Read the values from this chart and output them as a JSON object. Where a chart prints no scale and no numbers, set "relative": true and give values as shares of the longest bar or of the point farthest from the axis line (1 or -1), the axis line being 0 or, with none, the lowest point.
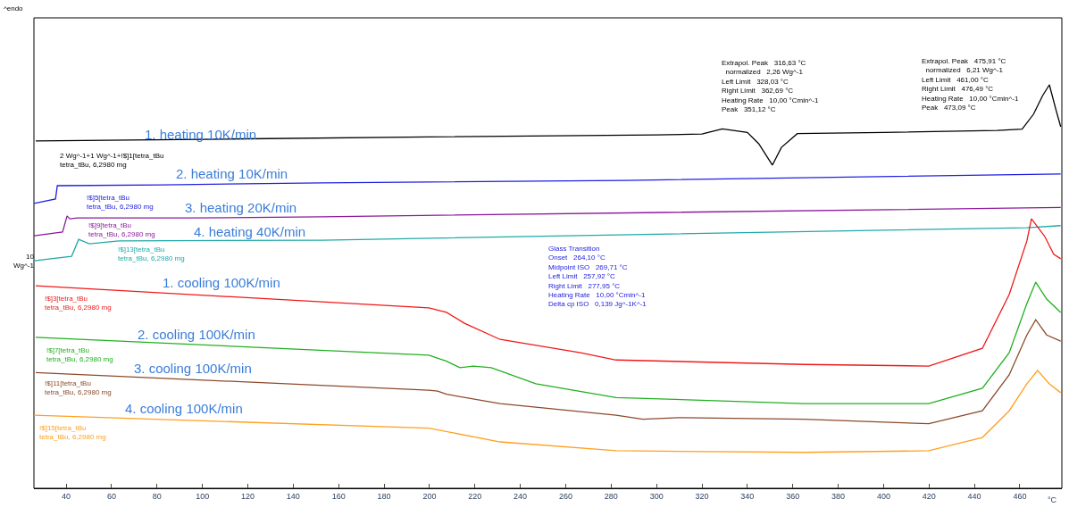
{
  "chart_data": {
    "type": "line",
    "relative": true,
    "xlabel": "°C",
    "xlim": [
      25.8,
      478.5
    ],
    "xticks": [
      40,
      60,
      80,
      100,
      120,
      140,
      160,
      180,
      200,
      220,
      240,
      260,
      280,
      300,
      320,
      340,
      360,
      380,
      400,
      420,
      440,
      460
    ],
    "grid": false,
    "legend": false,
    "marker": "none",
    "line_style": "solid",
    "series": [
      {
        "name": "1. heating 10K/min",
        "color": "#000000",
        "x": [
          26.6,
          100,
          200,
          300,
          320,
          329,
          340,
          345,
          351,
          355,
          362,
          400,
          450,
          461,
          466,
          470,
          473,
          476,
          478
        ],
        "values": [
          0.861,
          0.865,
          0.871,
          0.876,
          0.878,
          0.891,
          0.882,
          0.854,
          0.801,
          0.845,
          0.879,
          0.882,
          0.887,
          0.89,
          0.927,
          0.973,
          1.0,
          0.936,
          0.896
        ]
      },
      {
        "name": "2. heating 10K/min",
        "color": "#2020e0",
        "x": [
          25.8,
          35.3,
          36.1,
          82.5,
          152.5,
          286,
          478
        ],
        "values": [
          0.706,
          0.717,
          0.75,
          0.752,
          0.757,
          0.763,
          0.779
        ]
      },
      {
        "name": "3. heating 20K/min",
        "color": "#8b1a9b",
        "x": [
          25.8,
          38.4,
          40.4,
          41.6,
          45.1,
          94.7,
          152.5,
          478
        ],
        "values": [
          0.626,
          0.635,
          0.675,
          0.668,
          0.67,
          0.67,
          0.673,
          0.696
        ]
      },
      {
        "name": "4. heating 40K/min",
        "color": "#20a8a8",
        "x": [
          25.8,
          42.4,
          45.5,
          50.2,
          63.2,
          152.5,
          463,
          478
        ],
        "values": [
          0.564,
          0.575,
          0.617,
          0.606,
          0.613,
          0.615,
          0.646,
          0.651
        ]
      },
      {
        "name": "1. cooling 100K/min",
        "color": "#f01818",
        "x": [
          26.6,
          199.7,
          207.5,
          215.4,
          231.1,
          266.5,
          282.2,
          364.8,
          419.9,
          443.5,
          455.3,
          463.1,
          465.1,
          471.0,
          474.9,
          478
        ],
        "values": [
          0.502,
          0.447,
          0.436,
          0.409,
          0.369,
          0.336,
          0.318,
          0.307,
          0.303,
          0.347,
          0.48,
          0.613,
          0.668,
          0.624,
          0.58,
          0.569
        ]
      },
      {
        "name": "2. cooling 100K/min",
        "color": "#20b020",
        "x": [
          26.6,
          199.7,
          207.5,
          213.4,
          219.3,
          227.2,
          246.8,
          282.2,
          364.8,
          419.9,
          443.5,
          455.3,
          463.1,
          467.0,
          471.8,
          478
        ],
        "values": [
          0.374,
          0.33,
          0.315,
          0.299,
          0.303,
          0.299,
          0.259,
          0.225,
          0.21,
          0.21,
          0.248,
          0.336,
          0.458,
          0.511,
          0.469,
          0.436
        ]
      },
      {
        "name": "3. cooling 100K/min",
        "color": "#8b4a2b",
        "x": [
          26.6,
          199.7,
          203.6,
          207.5,
          231.1,
          282.2,
          294.0,
          309.7,
          364.8,
          419.9,
          443.5,
          455.3,
          463.1,
          467.0,
          471.8,
          478
        ],
        "values": [
          0.287,
          0.243,
          0.241,
          0.233,
          0.21,
          0.181,
          0.171,
          0.175,
          0.171,
          0.16,
          0.192,
          0.281,
          0.38,
          0.418,
          0.38,
          0.365
        ]
      },
      {
        "name": "4. cooling 100K/min",
        "color": "#ffa020",
        "x": [
          25.8,
          199.7,
          231.1,
          282.2,
          364.8,
          419.9,
          443.5,
          455.3,
          463.1,
          467.8,
          473.0,
          478
        ],
        "values": [
          0.181,
          0.149,
          0.115,
          0.093,
          0.089,
          0.093,
          0.126,
          0.192,
          0.259,
          0.292,
          0.259,
          0.237
        ]
      }
    ],
    "annotations": [
      "^endo",
      "2 Wg^-1+1 Wg^-1+!$]1[tetra_tBu\ntetra_tBu, 6,2980 mg",
      "!$]5[tetra_tBu\ntetra_tBu, 6,2980 mg",
      "!$]9[tetra_tBu\ntetra_tBu, 6,2980 mg",
      "!$]13[tetra_tBu\ntetra_tBu, 6,2980 mg",
      "!$]3[tetra_tBu\ntetra_tBu, 6,2980 mg",
      "!$]7[tetra_tBu\ntetra_tBu, 6,2980 mg",
      "!$]11[tetra_tBu\ntetra_tBu, 6,2980 mg",
      "!$]15[tetra_tBu\ntetra_tBu, 6,2980 mg",
      "10\nWg^-1",
      "Glass Transition\nOnset   264,10 °C\nMidpoint ISO   269,71 °C\nLeft Limit   257,92 °C\nRight Limit   277,95 °C\nHeating Rate   10,00 °Cmin^-1\nDelta cp ISO   0,139 Jg^-1K^-1",
      "Extrapol. Peak   316,63 °C\n  normalized   2,26 Wg^-1\nLeft Limit   328,03 °C\nRight Limit   362,69 °C\nHeating Rate   10,00 °Cmin^-1\nPeak   351,12 °C",
      "Extrapol. Peak   475,91 °C\n  normalized   6,21 Wg^-1\nLeft Limit   461,00 °C\nRight Limit   476,49 °C\nHeating Rate   10,00 °Cmin^-1\nPeak   473,09 °C"
    ]
  }
}
